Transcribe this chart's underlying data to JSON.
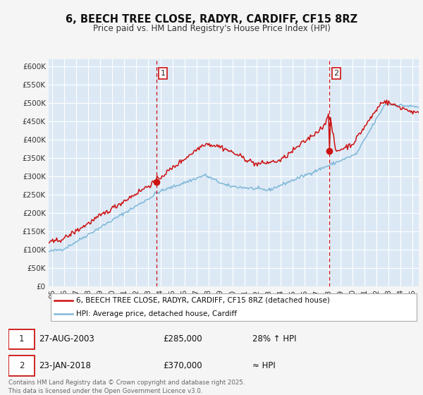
{
  "title": "6, BEECH TREE CLOSE, RADYR, CARDIFF, CF15 8RZ",
  "subtitle": "Price paid vs. HM Land Registry's House Price Index (HPI)",
  "ylim": [
    0,
    620000
  ],
  "xlim_start": 1994.7,
  "xlim_end": 2025.5,
  "yticks": [
    0,
    50000,
    100000,
    150000,
    200000,
    250000,
    300000,
    350000,
    400000,
    450000,
    500000,
    550000,
    600000
  ],
  "ytick_labels": [
    "£0",
    "£50K",
    "£100K",
    "£150K",
    "£200K",
    "£250K",
    "£300K",
    "£350K",
    "£400K",
    "£450K",
    "£500K",
    "£550K",
    "£600K"
  ],
  "hpi_color": "#7fb8d8",
  "price_color": "#cc1111",
  "bg_color": "#dce9f5",
  "grid_color": "#ffffff",
  "point1_date": 2003.65,
  "point1_price": 285000,
  "point2_date": 2018.07,
  "point2_price": 370000,
  "legend_line1": "6, BEECH TREE CLOSE, RADYR, CARDIFF, CF15 8RZ (detached house)",
  "legend_line2": "HPI: Average price, detached house, Cardiff",
  "table_row1": [
    "1",
    "27-AUG-2003",
    "£285,000",
    "28% ↑ HPI"
  ],
  "table_row2": [
    "2",
    "23-JAN-2018",
    "£370,000",
    "≈ HPI"
  ],
  "footer": "Contains HM Land Registry data © Crown copyright and database right 2025.\nThis data is licensed under the Open Government Licence v3.0.",
  "xticks": [
    1995,
    1996,
    1997,
    1998,
    1999,
    2000,
    2001,
    2002,
    2003,
    2004,
    2005,
    2006,
    2007,
    2008,
    2009,
    2010,
    2011,
    2012,
    2013,
    2014,
    2015,
    2016,
    2017,
    2018,
    2019,
    2020,
    2021,
    2022,
    2023,
    2024,
    2025
  ]
}
